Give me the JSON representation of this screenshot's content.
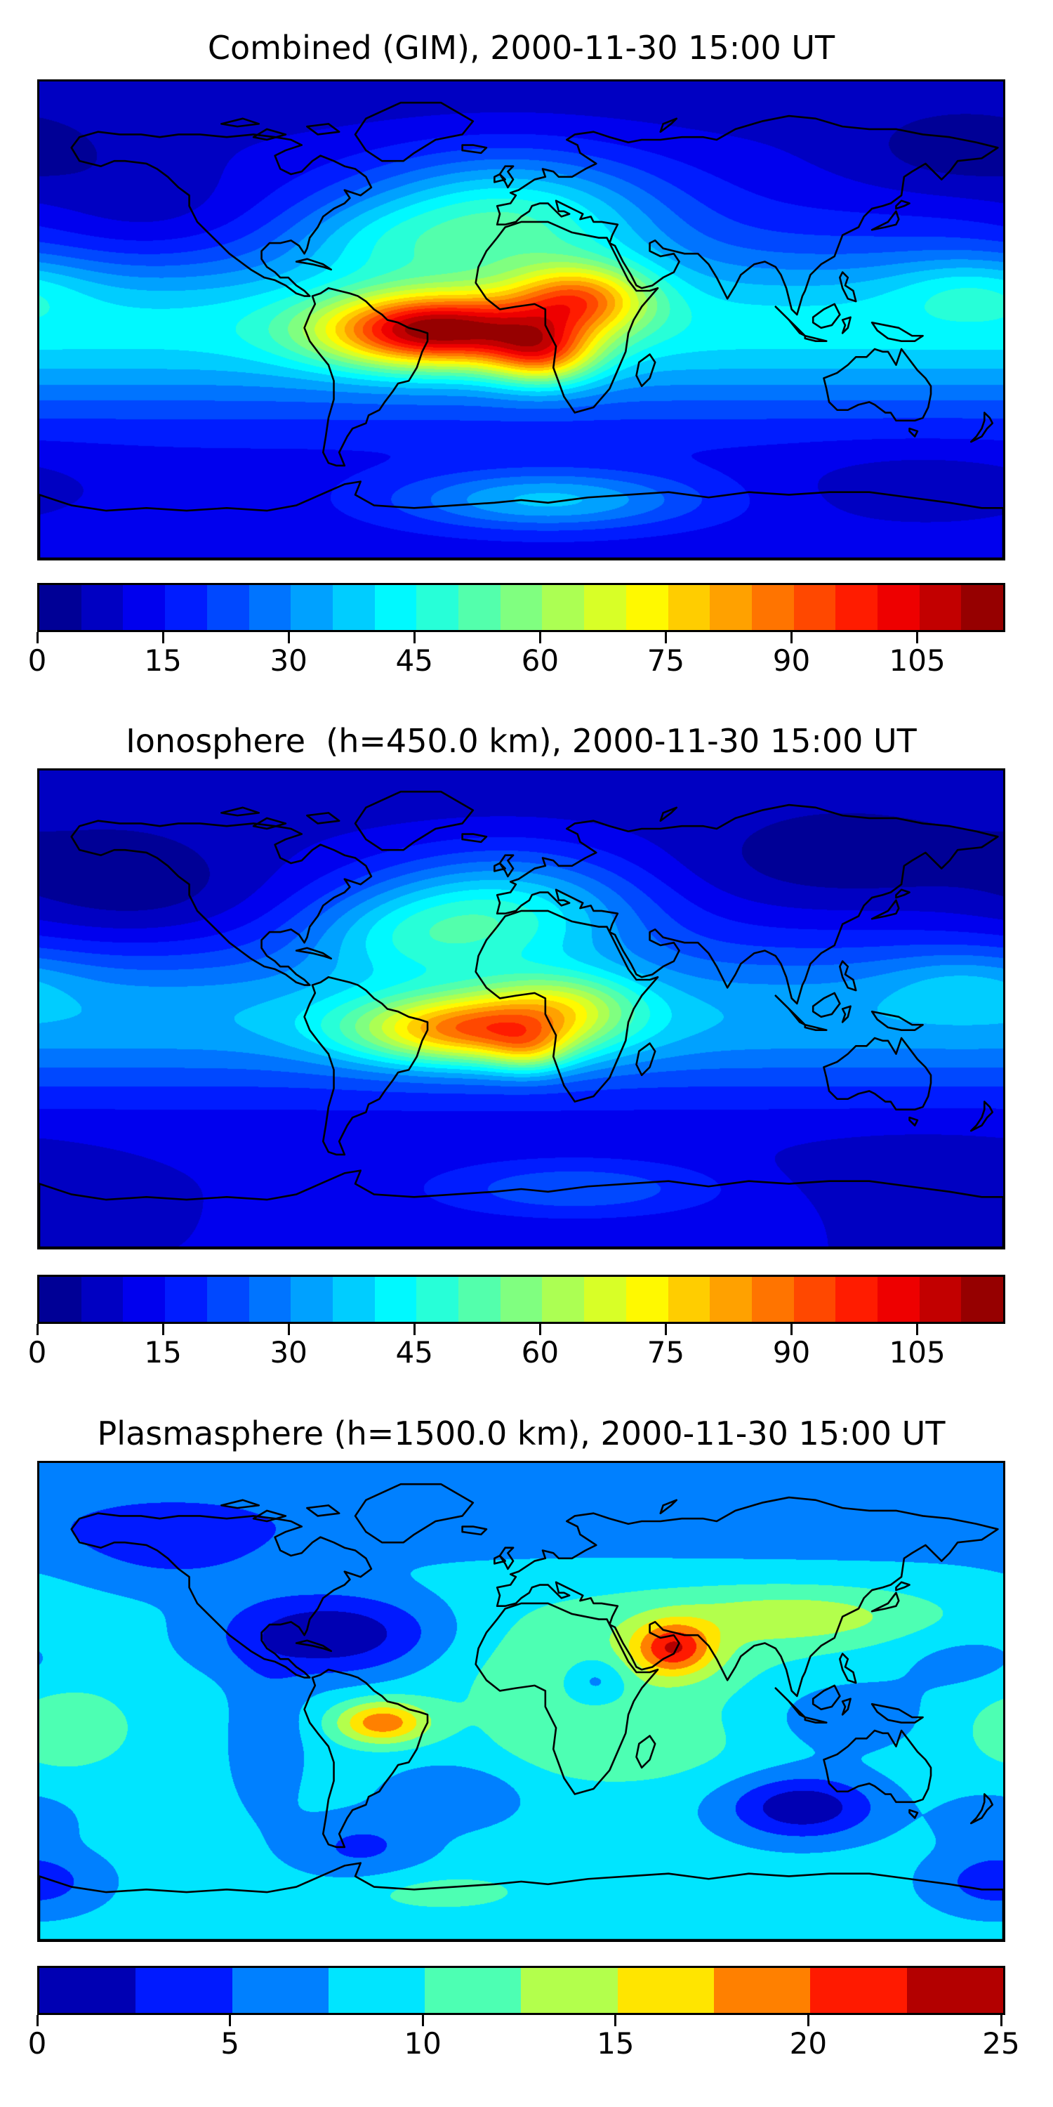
{
  "figure": {
    "background": "#ffffff",
    "coastline_color": "#000000",
    "text_color": "#000000"
  },
  "chart_data": [
    {
      "type": "heatmap",
      "title": "Combined (GIM), 2000-11-30 15:00 UT",
      "colormap": "jet",
      "value_range": [
        0,
        115
      ],
      "level_step": 5,
      "colorbar_ticks": [
        0,
        15,
        30,
        45,
        60,
        75,
        90,
        105
      ],
      "lon_range": [
        -180,
        180
      ],
      "lat_range": [
        -90,
        90
      ],
      "grid": false,
      "field_model": {
        "base": 12,
        "bands": [
          [
            30,
            -3,
            30
          ],
          [
            -5,
            90,
            25
          ]
        ],
        "blobs": [
          [
            -32,
            -4,
            72,
            42,
            14
          ],
          [
            8,
            -13,
            40,
            20,
            12
          ],
          [
            22,
            8,
            44,
            26,
            13
          ],
          [
            -140,
            38,
            -7,
            40,
            22
          ],
          [
            165,
            62,
            -8,
            45,
            16
          ],
          [
            10,
            -68,
            24,
            55,
            11
          ],
          [
            168,
            12,
            10,
            30,
            12
          ],
          [
            -5,
            38,
            34,
            55,
            24
          ],
          [
            -55,
            30,
            10,
            35,
            16
          ],
          [
            150,
            -62,
            -6,
            50,
            14
          ]
        ]
      }
    },
    {
      "type": "heatmap",
      "title": "Ionosphere  (h=450.0 km), 2000-11-30 15:00 UT",
      "colormap": "jet",
      "value_range": [
        0,
        115
      ],
      "level_step": 5,
      "colorbar_ticks": [
        0,
        15,
        30,
        45,
        60,
        75,
        90,
        105
      ],
      "lon_range": [
        -180,
        180
      ],
      "lat_range": [
        -90,
        90
      ],
      "grid": false,
      "field_model": {
        "base": 10,
        "bands": [
          [
            24,
            -3,
            28
          ],
          [
            -4,
            90,
            22
          ]
        ],
        "blobs": [
          [
            -18,
            -8,
            55,
            45,
            13
          ],
          [
            3,
            -16,
            18,
            15,
            9
          ],
          [
            15,
            3,
            22,
            30,
            12
          ],
          [
            -45,
            28,
            16,
            40,
            18
          ],
          [
            -5,
            37,
            30,
            50,
            22
          ],
          [
            -145,
            45,
            -9,
            45,
            22
          ],
          [
            120,
            55,
            -8,
            60,
            18
          ],
          [
            20,
            -68,
            14,
            55,
            11
          ],
          [
            165,
            10,
            8,
            30,
            12
          ],
          [
            150,
            -60,
            -5,
            50,
            13
          ]
        ]
      }
    },
    {
      "type": "heatmap",
      "title": "Plasmasphere (h=1500.0 km), 2000-11-30 15:00 UT",
      "colormap": "jet",
      "value_range": [
        0,
        25
      ],
      "level_step": 2.5,
      "colorbar_ticks": [
        0,
        5,
        10,
        15,
        20,
        25
      ],
      "lon_range": [
        -180,
        180
      ],
      "lat_range": [
        -90,
        90
      ],
      "grid": false,
      "field_model": {
        "base": 8.5,
        "bands": [
          [
            -2.8,
            80,
            20
          ],
          [
            -1.2,
            62,
            12
          ]
        ],
        "blobs": [
          [
            -52,
            -8,
            10.5,
            17,
            8
          ],
          [
            57,
            20,
            11,
            15,
            10
          ],
          [
            105,
            32,
            5,
            50,
            11
          ],
          [
            30,
            15,
            3.5,
            70,
            25
          ],
          [
            35,
            -18,
            3,
            45,
            14
          ],
          [
            -170,
            -10,
            3.5,
            25,
            16
          ],
          [
            -70,
            25,
            -8.5,
            42,
            16
          ],
          [
            -130,
            55,
            -3,
            40,
            15
          ],
          [
            105,
            -40,
            -8,
            28,
            12
          ],
          [
            -95,
            -15,
            -3,
            14,
            28
          ],
          [
            -25,
            -35,
            -3.5,
            25,
            12
          ],
          [
            -60,
            -55,
            -4,
            25,
            12
          ],
          [
            28,
            8,
            -4.5,
            12,
            9
          ],
          [
            120,
            -5,
            -3,
            30,
            14
          ],
          [
            165,
            15,
            -2,
            25,
            12
          ],
          [
            178,
            -68,
            -5,
            25,
            12
          ],
          [
            -30,
            -72,
            2.5,
            35,
            8
          ],
          [
            175,
            -45,
            -3,
            18,
            10
          ]
        ]
      }
    }
  ]
}
